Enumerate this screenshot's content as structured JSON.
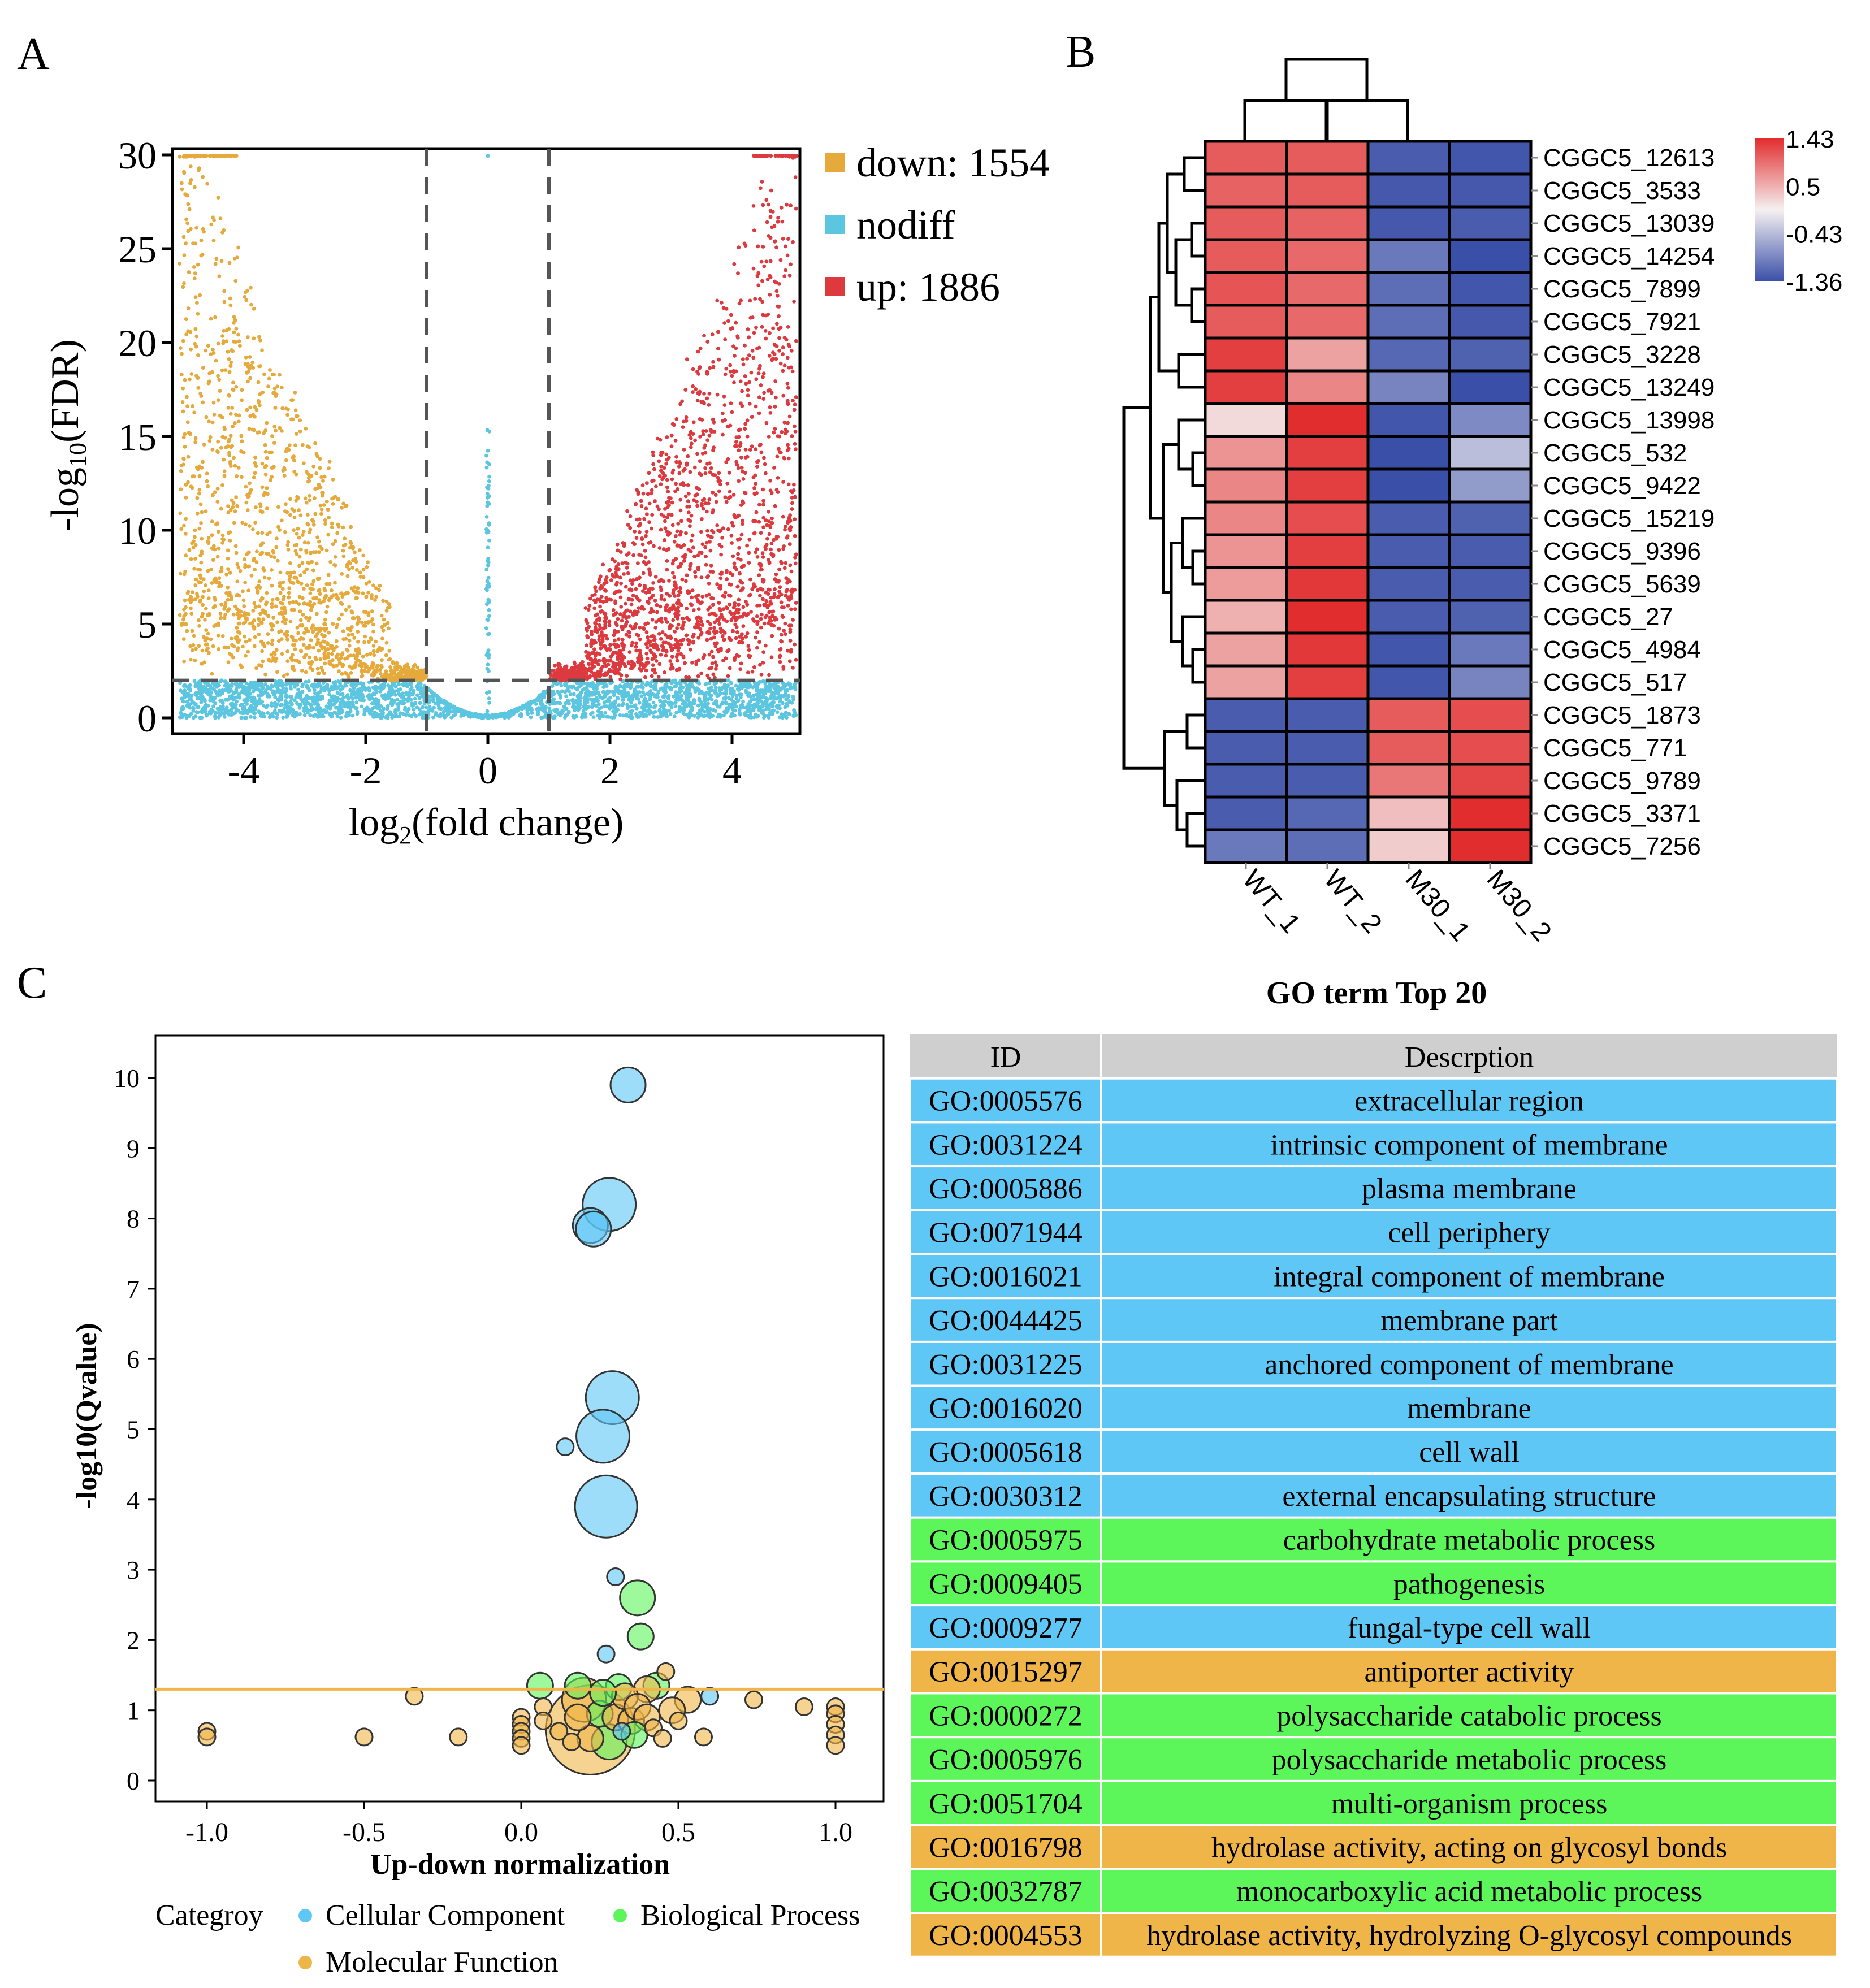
{
  "panels": {
    "a": "A",
    "b": "B",
    "c": "C"
  },
  "colors": {
    "down": "#e6a93b",
    "nodiff": "#5cc6e0",
    "up": "#dc3a3f",
    "cc": "#5ec7f5",
    "bp": "#5cf55a",
    "mf": "#f0b548",
    "header": "#cfcfcf",
    "hm_high": "#e22d2e",
    "hm_mid": "#f5f1f1",
    "hm_low": "#3a4fa8"
  },
  "chart_data": [
    {
      "type": "scatter",
      "subtype": "volcano",
      "title": "",
      "xlabel": "log2(fold change)",
      "ylabel": "-log10(FDR)",
      "xlim": [
        -5.2,
        5.2
      ],
      "ylim": [
        -1,
        30
      ],
      "xticks": [
        -4,
        -2,
        0,
        2,
        4
      ],
      "xtick_labels": [
        "-4",
        "-2",
        "0",
        "2",
        "4"
      ],
      "yticks": [
        0,
        5,
        10,
        15,
        20,
        25,
        30
      ],
      "ytick_labels": [
        "0",
        "5",
        "10",
        "15",
        "20",
        "25",
        "30"
      ],
      "thresholds": {
        "fold_change": [
          -1,
          1
        ],
        "fdr": 2
      },
      "legend": [
        {
          "key": "down",
          "label": "down: 1554",
          "count": 1554
        },
        {
          "key": "nodiff",
          "label": "nodiff"
        },
        {
          "key": "up",
          "label": "up: 1886",
          "count": 1886
        }
      ]
    },
    {
      "type": "heatmap",
      "columns": [
        "WT_1",
        "WT_2",
        "M30_1",
        "M30_2"
      ],
      "rows": [
        "CGGC5_12613",
        "CGGC5_3533",
        "CGGC5_13039",
        "CGGC5_14254",
        "CGGC5_7899",
        "CGGC5_7921",
        "CGGC5_3228",
        "CGGC5_13249",
        "CGGC5_13998",
        "CGGC5_532",
        "CGGC5_9422",
        "CGGC5_15219",
        "CGGC5_9396",
        "CGGC5_5639",
        "CGGC5_27",
        "CGGC5_4984",
        "CGGC5_517",
        "CGGC5_1873",
        "CGGC5_771",
        "CGGC5_9789",
        "CGGC5_3371",
        "CGGC5_7256"
      ],
      "values": [
        [
          1.1,
          1.1,
          -1.25,
          -1.3
        ],
        [
          1.05,
          1.1,
          -1.28,
          -1.28
        ],
        [
          1.1,
          1.05,
          -1.28,
          -1.25
        ],
        [
          1.1,
          1.0,
          -1.0,
          -1.36
        ],
        [
          1.15,
          1.0,
          -1.1,
          -1.3
        ],
        [
          1.1,
          1.0,
          -1.1,
          -1.28
        ],
        [
          1.3,
          0.6,
          -1.15,
          -1.2
        ],
        [
          1.3,
          0.8,
          -0.9,
          -1.36
        ],
        [
          0.2,
          1.43,
          -1.3,
          -0.85
        ],
        [
          0.7,
          1.3,
          -1.36,
          -0.4
        ],
        [
          0.8,
          1.3,
          -1.36,
          -0.7
        ],
        [
          0.8,
          1.2,
          -1.25,
          -1.2
        ],
        [
          0.7,
          1.3,
          -1.25,
          -1.25
        ],
        [
          0.65,
          1.35,
          -1.25,
          -1.25
        ],
        [
          0.5,
          1.43,
          -1.25,
          -1.2
        ],
        [
          0.6,
          1.35,
          -1.3,
          -1.0
        ],
        [
          0.6,
          1.3,
          -1.3,
          -0.9
        ],
        [
          -1.25,
          -1.25,
          1.1,
          1.2
        ],
        [
          -1.25,
          -1.25,
          1.1,
          1.2
        ],
        [
          -1.25,
          -1.25,
          0.9,
          1.25
        ],
        [
          -1.25,
          -1.15,
          0.4,
          1.43
        ],
        [
          -1.0,
          -1.1,
          0.3,
          1.43
        ]
      ],
      "colorbar": {
        "ticks": [
          1.43,
          0.5,
          -0.43,
          -1.36
        ],
        "tick_labels": [
          "1.43",
          "0.5",
          "-0.43",
          "-1.36"
        ]
      }
    },
    {
      "type": "scatter",
      "subtype": "bubble",
      "xlabel": "Up-down normalization",
      "ylabel": "-log10(Qvalue)",
      "xlim": [
        -1.15,
        1.15
      ],
      "ylim": [
        -0.2,
        10.7
      ],
      "xticks": [
        -1.0,
        -0.5,
        0.0,
        0.5,
        1.0
      ],
      "xtick_labels": [
        "-1.0",
        "-0.5",
        "0.0",
        "0.5",
        "1.0"
      ],
      "yticks": [
        0,
        1,
        2,
        3,
        4,
        5,
        6,
        7,
        8,
        9,
        10
      ],
      "ytick_labels": [
        "0",
        "1",
        "2",
        "3",
        "4",
        "5",
        "6",
        "7",
        "8",
        "9",
        "10"
      ],
      "threshold_y": 1.3,
      "legend_title": "Categroy",
      "legend": [
        {
          "key": "cc",
          "label": "Cellular Component"
        },
        {
          "key": "bp",
          "label": "Biological Process"
        },
        {
          "key": "mf",
          "label": "Molecular Function"
        }
      ],
      "points": [
        {
          "x": 0.34,
          "y": 9.9,
          "size": 3,
          "cat": "cc"
        },
        {
          "x": 0.28,
          "y": 8.2,
          "size": 5,
          "cat": "cc"
        },
        {
          "x": 0.22,
          "y": 7.9,
          "size": 3,
          "cat": "cc"
        },
        {
          "x": 0.23,
          "y": 7.85,
          "size": 3,
          "cat": "cc"
        },
        {
          "x": 0.29,
          "y": 5.45,
          "size": 5,
          "cat": "cc"
        },
        {
          "x": 0.26,
          "y": 4.9,
          "size": 5,
          "cat": "cc"
        },
        {
          "x": 0.14,
          "y": 4.75,
          "size": 1,
          "cat": "cc"
        },
        {
          "x": 0.27,
          "y": 3.9,
          "size": 6,
          "cat": "cc"
        },
        {
          "x": 0.3,
          "y": 2.9,
          "size": 1,
          "cat": "cc"
        },
        {
          "x": 0.37,
          "y": 2.6,
          "size": 3,
          "cat": "bp"
        },
        {
          "x": 0.38,
          "y": 2.05,
          "size": 2,
          "cat": "bp"
        },
        {
          "x": 0.27,
          "y": 1.8,
          "size": 1,
          "cat": "cc"
        },
        {
          "x": 0.06,
          "y": 1.35,
          "size": 2,
          "cat": "bp"
        },
        {
          "x": 0.18,
          "y": 1.35,
          "size": 2,
          "cat": "bp"
        },
        {
          "x": 0.31,
          "y": 1.33,
          "size": 2,
          "cat": "bp"
        },
        {
          "x": 0.43,
          "y": 1.35,
          "size": 2,
          "cat": "bp"
        },
        {
          "x": 0.46,
          "y": 1.55,
          "size": 1,
          "cat": "mf"
        },
        {
          "x": 0.4,
          "y": 1.3,
          "size": 2,
          "cat": "mf"
        },
        {
          "x": 0.53,
          "y": 1.15,
          "size": 2,
          "cat": "mf"
        },
        {
          "x": 0.6,
          "y": 1.2,
          "size": 1,
          "cat": "cc"
        },
        {
          "x": 0.74,
          "y": 1.15,
          "size": 1,
          "cat": "mf"
        },
        {
          "x": 0.9,
          "y": 1.05,
          "size": 1,
          "cat": "mf"
        },
        {
          "x": 1.0,
          "y": 1.05,
          "size": 1,
          "cat": "mf"
        },
        {
          "x": 1.0,
          "y": 0.95,
          "size": 1,
          "cat": "mf"
        },
        {
          "x": 1.0,
          "y": 0.8,
          "size": 1,
          "cat": "mf"
        },
        {
          "x": 1.0,
          "y": 0.65,
          "size": 1,
          "cat": "mf"
        },
        {
          "x": 1.0,
          "y": 0.5,
          "size": 1,
          "cat": "mf"
        },
        {
          "x": -1.0,
          "y": 0.7,
          "size": 1,
          "cat": "mf"
        },
        {
          "x": -1.0,
          "y": 0.62,
          "size": 1,
          "cat": "mf"
        },
        {
          "x": -0.5,
          "y": 0.62,
          "size": 1,
          "cat": "mf"
        },
        {
          "x": -0.34,
          "y": 1.2,
          "size": 1,
          "cat": "mf"
        },
        {
          "x": -0.2,
          "y": 0.62,
          "size": 1,
          "cat": "mf"
        },
        {
          "x": 0.0,
          "y": 0.9,
          "size": 1,
          "cat": "mf"
        },
        {
          "x": 0.0,
          "y": 0.8,
          "size": 1,
          "cat": "mf"
        },
        {
          "x": 0.0,
          "y": 0.7,
          "size": 1,
          "cat": "mf"
        },
        {
          "x": 0.0,
          "y": 0.6,
          "size": 1,
          "cat": "mf"
        },
        {
          "x": 0.0,
          "y": 0.5,
          "size": 1,
          "cat": "mf"
        },
        {
          "x": 0.07,
          "y": 1.05,
          "size": 1,
          "cat": "mf"
        },
        {
          "x": 0.07,
          "y": 0.85,
          "size": 1,
          "cat": "mf"
        },
        {
          "x": 0.12,
          "y": 0.7,
          "size": 1,
          "cat": "mf"
        },
        {
          "x": 0.16,
          "y": 0.55,
          "size": 1,
          "cat": "mf"
        },
        {
          "x": 0.2,
          "y": 1.15,
          "size": 4,
          "cat": "mf"
        },
        {
          "x": 0.22,
          "y": 0.72,
          "size": 9,
          "cat": "mf"
        },
        {
          "x": 0.25,
          "y": 0.95,
          "size": 2,
          "cat": "bp"
        },
        {
          "x": 0.28,
          "y": 0.55,
          "size": 3,
          "cat": "bp"
        },
        {
          "x": 0.3,
          "y": 0.9,
          "size": 2,
          "cat": "mf"
        },
        {
          "x": 0.33,
          "y": 1.2,
          "size": 2,
          "cat": "mf"
        },
        {
          "x": 0.35,
          "y": 0.85,
          "size": 2,
          "cat": "mf"
        },
        {
          "x": 0.37,
          "y": 1.05,
          "size": 2,
          "cat": "mf"
        },
        {
          "x": 0.4,
          "y": 0.9,
          "size": 2,
          "cat": "mf"
        },
        {
          "x": 0.42,
          "y": 0.75,
          "size": 1,
          "cat": "mf"
        },
        {
          "x": 0.45,
          "y": 0.6,
          "size": 1,
          "cat": "mf"
        },
        {
          "x": 0.5,
          "y": 0.85,
          "size": 1,
          "cat": "mf"
        },
        {
          "x": 0.48,
          "y": 1.0,
          "size": 2,
          "cat": "mf"
        },
        {
          "x": 0.36,
          "y": 0.65,
          "size": 2,
          "cat": "bp"
        },
        {
          "x": 0.32,
          "y": 0.7,
          "size": 1,
          "cat": "cc"
        },
        {
          "x": 0.26,
          "y": 1.25,
          "size": 2,
          "cat": "bp"
        },
        {
          "x": 0.58,
          "y": 0.62,
          "size": 1,
          "cat": "mf"
        },
        {
          "x": 0.22,
          "y": 0.6,
          "size": 2,
          "cat": "mf"
        },
        {
          "x": 0.18,
          "y": 0.9,
          "size": 2,
          "cat": "mf"
        }
      ]
    }
  ],
  "go_table": {
    "title": "GO term Top 20",
    "headers": [
      "ID",
      "Descrption"
    ],
    "rows": [
      {
        "id": "GO:0005576",
        "desc": "extracellular region",
        "cat": "cc"
      },
      {
        "id": "GO:0031224",
        "desc": "intrinsic component of membrane",
        "cat": "cc"
      },
      {
        "id": "GO:0005886",
        "desc": "plasma membrane",
        "cat": "cc"
      },
      {
        "id": "GO:0071944",
        "desc": "cell periphery",
        "cat": "cc"
      },
      {
        "id": "GO:0016021",
        "desc": "integral component of membrane",
        "cat": "cc"
      },
      {
        "id": "GO:0044425",
        "desc": "membrane part",
        "cat": "cc"
      },
      {
        "id": "GO:0031225",
        "desc": "anchored component of membrane",
        "cat": "cc"
      },
      {
        "id": "GO:0016020",
        "desc": "membrane",
        "cat": "cc"
      },
      {
        "id": "GO:0005618",
        "desc": "cell wall",
        "cat": "cc"
      },
      {
        "id": "GO:0030312",
        "desc": "external encapsulating structure",
        "cat": "cc"
      },
      {
        "id": "GO:0005975",
        "desc": "carbohydrate metabolic process",
        "cat": "bp"
      },
      {
        "id": "GO:0009405",
        "desc": "pathogenesis",
        "cat": "bp"
      },
      {
        "id": "GO:0009277",
        "desc": "fungal-type cell wall",
        "cat": "cc"
      },
      {
        "id": "GO:0015297",
        "desc": "antiporter activity",
        "cat": "mf"
      },
      {
        "id": "GO:0000272",
        "desc": "polysaccharide catabolic process",
        "cat": "bp"
      },
      {
        "id": "GO:0005976",
        "desc": "polysaccharide metabolic process",
        "cat": "bp"
      },
      {
        "id": "GO:0051704",
        "desc": "multi-organism process",
        "cat": "bp"
      },
      {
        "id": "GO:0016798",
        "desc": "hydrolase activity, acting on glycosyl bonds",
        "cat": "mf"
      },
      {
        "id": "GO:0032787",
        "desc": "monocarboxylic acid metabolic process",
        "cat": "bp"
      },
      {
        "id": "GO:0004553",
        "desc": "hydrolase activity, hydrolyzing O-glycosyl compounds",
        "cat": "mf"
      }
    ]
  }
}
